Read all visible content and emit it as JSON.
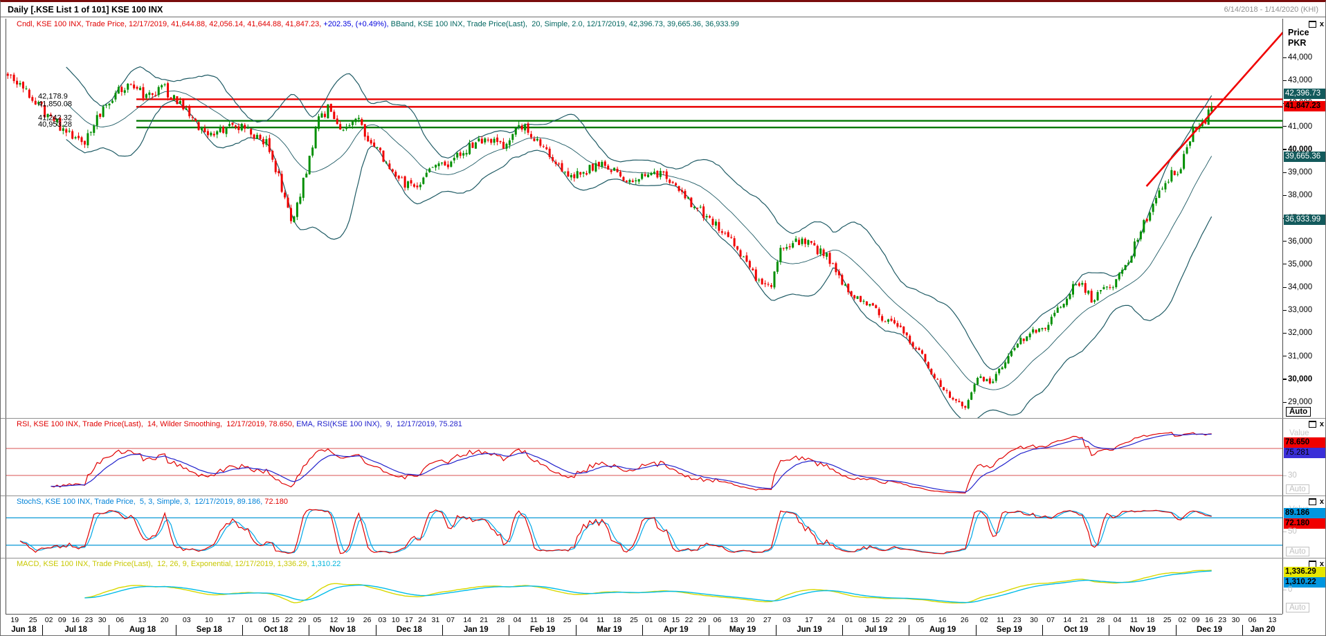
{
  "window": {
    "title": "Daily [.KSE List 1 of 101] KSE 100 INX",
    "date_range": "6/14/2018 - 1/14/2020 (KHI)"
  },
  "ui": {
    "value_label": "Value",
    "auto_label": "Auto",
    "close_icon": "x",
    "axis_price": "Price",
    "axis_currency": "PKR"
  },
  "main": {
    "legend_cndl": "Cndl, KSE 100 INX, Trade Price, 12/17/2019, 41,644.88, 42,056.14, 41,644.88, 41,847.23, ",
    "legend_change": "+202.35, (+0.49%), ",
    "legend_bband": "BBand, KSE 100 INX, Trade Price(Last),  20, Simple, 2.0, 12/17/2019, 42,396.73, 39,665.36, 36,933.99",
    "y_ticks": [
      {
        "label": "44,000",
        "value": 44000
      },
      {
        "label": "43,000",
        "value": 43000
      },
      {
        "label": "42,000",
        "value": 42000
      },
      {
        "label": "41,000",
        "value": 41000
      },
      {
        "label": "40,000",
        "value": 40000,
        "bold": true
      },
      {
        "label": "39,000",
        "value": 39000
      },
      {
        "label": "38,000",
        "value": 38000
      },
      {
        "label": "37,000",
        "value": 37000
      },
      {
        "label": "36,000",
        "value": 36000
      },
      {
        "label": "35,000",
        "value": 35000
      },
      {
        "label": "34,000",
        "value": 34000
      },
      {
        "label": "33,000",
        "value": 33000
      },
      {
        "label": "32,000",
        "value": 32000
      },
      {
        "label": "31,000",
        "value": 31000
      },
      {
        "label": "30,000",
        "value": 30000,
        "bold": true
      },
      {
        "label": "29,000",
        "value": 29000
      }
    ],
    "badges": [
      {
        "label": "42,396.73",
        "value": 42396.73,
        "style": "teal"
      },
      {
        "label": "41,847.23",
        "value": 41847.23,
        "style": "red"
      },
      {
        "label": "39,665.36",
        "value": 39665.36,
        "style": "teal"
      },
      {
        "label": "36,933.99",
        "value": 36933.99,
        "style": "teal"
      }
    ],
    "hlines": [
      {
        "label": "42,178.9",
        "value": 42178.9,
        "color": "#e80000"
      },
      {
        "label": "41,850.08",
        "value": 41850.08,
        "color": "#e80000"
      },
      {
        "label": "41,242.32",
        "value": 41242.32,
        "color": "#007800"
      },
      {
        "label": "40,953.28",
        "value": 40953.28,
        "color": "#007800"
      }
    ]
  },
  "rsi": {
    "legend_main": "RSI, KSE 100 INX, Tr​ade Price(Last),  14, Wilder Smoothing,  12/17/2019, 78.650, ",
    "legend_ema": "EMA, RSI(KSE 100 INX),  9,  12/17/2019, 75.281",
    "badges": [
      {
        "label": "78.650",
        "value": 78.65,
        "style": "redbg"
      },
      {
        "label": "75.281",
        "value": 75.281,
        "style": "bluebg"
      }
    ],
    "levels": [
      70,
      30
    ],
    "axis_tick": {
      "label": "30",
      "value": 30
    }
  },
  "stoch": {
    "legend_main": "StochS, KSE 100 INX, Trade Price,  5, 3, Simple, 3,  12/17/2019, 89.186, ",
    "legend_last": "72.180",
    "badges": [
      {
        "label": "89.186",
        "value": 89.186,
        "style": "cyanbg"
      },
      {
        "label": "72.180",
        "value": 72.18,
        "style": "redbg"
      }
    ],
    "levels": [
      80,
      20
    ],
    "axis_tick": {
      "label": "50",
      "value": 50
    }
  },
  "macd": {
    "legend_main": "MACD, KSE 100 INX, Trade Price(Last),  12, 26, 9, Exponential, 12/17/2019, 1,336.29, ",
    "legend_last": "1,310.22",
    "badges": [
      {
        "label": "1,336.29",
        "value": 1336.29,
        "style": "yellowbg"
      },
      {
        "label": "1,310.22",
        "value": 1310.22,
        "style": "cyanbg"
      }
    ],
    "axis_tick": {
      "label": "0",
      "value": 0
    }
  },
  "chart_data": {
    "type": "candlestick",
    "symbol": "KSE 100 INX",
    "interval": "Daily",
    "date_range": [
      "6/14/2018",
      "1/14/2020"
    ],
    "last_bar": {
      "date": "12/17/2019",
      "open": 41644.88,
      "high": 42056.14,
      "low": 41644.88,
      "close": 41847.23,
      "net_change": 202.35,
      "pct_change": 0.49
    },
    "bollinger": {
      "period": 20,
      "ma_type": "Simple",
      "stdev": 2.0,
      "upper": 42396.73,
      "middle": 39665.36,
      "lower": 36933.99
    },
    "support_resistance_lines": [
      42178.9,
      41850.08,
      41242.32,
      40953.28
    ],
    "trendline": {
      "from_x": 0.893,
      "from_price": 38395,
      "to_x": 1.0,
      "to_price": 45100
    },
    "ylim": [
      28700,
      45700
    ],
    "price_keypoints": [
      [
        0,
        43350
      ],
      [
        0.012,
        42700
      ],
      [
        0.031,
        41600
      ],
      [
        0.05,
        40700
      ],
      [
        0.062,
        40150
      ],
      [
        0.075,
        41400
      ],
      [
        0.087,
        42250
      ],
      [
        0.1,
        42900
      ],
      [
        0.115,
        42300
      ],
      [
        0.13,
        42650
      ],
      [
        0.143,
        41900
      ],
      [
        0.155,
        41150
      ],
      [
        0.17,
        40700
      ],
      [
        0.185,
        40950
      ],
      [
        0.199,
        40900
      ],
      [
        0.215,
        40300
      ],
      [
        0.228,
        38300
      ],
      [
        0.236,
        36950
      ],
      [
        0.248,
        39000
      ],
      [
        0.258,
        41200
      ],
      [
        0.266,
        41800
      ],
      [
        0.277,
        40600
      ],
      [
        0.29,
        41300
      ],
      [
        0.301,
        40300
      ],
      [
        0.309,
        39900
      ],
      [
        0.323,
        38650
      ],
      [
        0.337,
        38420
      ],
      [
        0.35,
        38950
      ],
      [
        0.366,
        39450
      ],
      [
        0.385,
        40150
      ],
      [
        0.4,
        40400
      ],
      [
        0.412,
        40250
      ],
      [
        0.419,
        40700
      ],
      [
        0.428,
        41100
      ],
      [
        0.441,
        40300
      ],
      [
        0.455,
        39450
      ],
      [
        0.47,
        38750
      ],
      [
        0.483,
        39150
      ],
      [
        0.493,
        39350
      ],
      [
        0.506,
        38950
      ],
      [
        0.52,
        38600
      ],
      [
        0.529,
        38850
      ],
      [
        0.543,
        38950
      ],
      [
        0.556,
        38450
      ],
      [
        0.569,
        37600
      ],
      [
        0.583,
        36950
      ],
      [
        0.597,
        36300
      ],
      [
        0.61,
        35300
      ],
      [
        0.624,
        34150
      ],
      [
        0.634,
        33900
      ],
      [
        0.642,
        35700
      ],
      [
        0.654,
        36050
      ],
      [
        0.668,
        35800
      ],
      [
        0.681,
        35300
      ],
      [
        0.696,
        33950
      ],
      [
        0.71,
        33450
      ],
      [
        0.724,
        32800
      ],
      [
        0.737,
        32350
      ],
      [
        0.749,
        31700
      ],
      [
        0.76,
        31000
      ],
      [
        0.775,
        29700
      ],
      [
        0.787,
        29100
      ],
      [
        0.795,
        28760
      ],
      [
        0.806,
        30150
      ],
      [
        0.818,
        29850
      ],
      [
        0.83,
        30900
      ],
      [
        0.845,
        31900
      ],
      [
        0.858,
        32150
      ],
      [
        0.864,
        32300
      ],
      [
        0.875,
        33200
      ],
      [
        0.888,
        34350
      ],
      [
        0.9,
        33500
      ],
      [
        0.912,
        33900
      ],
      [
        0.921,
        34200
      ],
      [
        0.932,
        35300
      ],
      [
        0.944,
        36800
      ],
      [
        0.956,
        38000
      ],
      [
        0.966,
        38900
      ],
      [
        0.974,
        39200
      ],
      [
        0.979,
        40100
      ],
      [
        0.985,
        40900
      ],
      [
        0.99,
        41200
      ],
      [
        0.995,
        41350
      ],
      [
        1,
        41847.23
      ]
    ],
    "indicators": {
      "rsi": {
        "period": 14,
        "smoothing": "Wilder Smoothing",
        "value": 78.65,
        "ema_period": 9,
        "ema_value": 75.281,
        "levels": [
          70,
          30
        ]
      },
      "stoch": {
        "k_period": 5,
        "k_smooth": 3,
        "ma_type": "Simple",
        "d_period": 3,
        "k": 89.186,
        "d": 72.18,
        "levels": [
          80,
          20
        ]
      },
      "macd": {
        "fast": 12,
        "slow": 26,
        "signal_period": 9,
        "ma_type": "Exponential",
        "macd": 1336.29,
        "signal": 1310.22,
        "zero_level": 0
      }
    },
    "x_axis_months": [
      {
        "label": "Jun 18",
        "w": 0.55,
        "days": [
          "19",
          "25"
        ]
      },
      {
        "label": "Jul 18",
        "w": 1,
        "days": [
          "02",
          "09",
          "16",
          "23",
          "30"
        ]
      },
      {
        "label": "Aug 18",
        "w": 1,
        "days": [
          "06",
          "13",
          "20"
        ]
      },
      {
        "label": "Sep 18",
        "w": 1,
        "days": [
          "03",
          "10",
          "17"
        ]
      },
      {
        "label": "Oct 18",
        "w": 1,
        "days": [
          "01",
          "08",
          "15",
          "22",
          "29"
        ]
      },
      {
        "label": "Nov 18",
        "w": 1,
        "days": [
          "05",
          "12",
          "19",
          "26"
        ]
      },
      {
        "label": "Dec 18",
        "w": 1,
        "days": [
          "03",
          "10",
          "17",
          "24",
          "31"
        ]
      },
      {
        "label": "Jan 19",
        "w": 1,
        "days": [
          "07",
          "14",
          "21",
          "28"
        ]
      },
      {
        "label": "Feb 19",
        "w": 1,
        "days": [
          "04",
          "11",
          "18",
          "25"
        ]
      },
      {
        "label": "Mar 19",
        "w": 1,
        "days": [
          "04",
          "11",
          "18",
          "25"
        ]
      },
      {
        "label": "Apr 19",
        "w": 1,
        "days": [
          "01",
          "08",
          "15",
          "22",
          "29"
        ]
      },
      {
        "label": "May 19",
        "w": 1,
        "days": [
          "06",
          "13",
          "20",
          "27"
        ]
      },
      {
        "label": "Jun 19",
        "w": 1,
        "days": [
          "03",
          "17",
          "24"
        ]
      },
      {
        "label": "Jul 19",
        "w": 1,
        "days": [
          "01",
          "08",
          "15",
          "22",
          "29"
        ]
      },
      {
        "label": "Aug 19",
        "w": 1,
        "days": [
          "05",
          "16",
          "26"
        ]
      },
      {
        "label": "Sep 19",
        "w": 1,
        "days": [
          "02",
          "11",
          "23",
          "30"
        ]
      },
      {
        "label": "Oct 19",
        "w": 1,
        "days": [
          "07",
          "14",
          "21",
          "28"
        ]
      },
      {
        "label": "Nov 19",
        "w": 1,
        "days": [
          "04",
          "11",
          "18",
          "25"
        ]
      },
      {
        "label": "Dec 19",
        "w": 1,
        "days": [
          "02",
          "09",
          "16",
          "23",
          "30"
        ]
      },
      {
        "label": "Jan 20",
        "w": 0.6,
        "days": [
          "06",
          "13"
        ]
      }
    ],
    "colors": {
      "candle_up": "#008f00",
      "candle_down": "#f00000",
      "bollinger": "#1e5a64",
      "trendline": "#f00000",
      "resistance": "#e80000",
      "support": "#007800",
      "rsi_line": "#e00000",
      "rsi_ema": "#2222cc",
      "stoch_k": "#e00000",
      "stoch_d": "#00a8e8",
      "stoch_levels": "#2fa8dc",
      "macd_line": "#d8d800",
      "macd_signal": "#00bce8",
      "badge_teal": "#135a5c",
      "badge_red": "#f00000",
      "badge_blue": "#3b2fd8",
      "badge_cyan": "#0096e0",
      "badge_yellow": "#e6e600"
    }
  }
}
